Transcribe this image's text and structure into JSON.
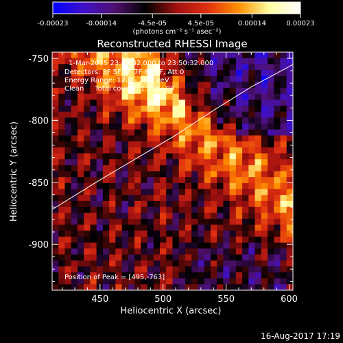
{
  "chart_data": {
    "type": "heatmap",
    "title": "Reconstructed RHESSI Image",
    "xlabel": "Heliocentric X (arcsec)",
    "ylabel": "Heliocentric Y (arcsec)",
    "xlim": [
      412,
      603
    ],
    "ylim": [
      -937,
      -745
    ],
    "x_ticks": [
      450,
      500,
      550,
      600
    ],
    "y_ticks": [
      -750,
      -800,
      -850,
      -900
    ],
    "colorbar": {
      "min": -0.00023,
      "max": 0.00023,
      "tick_values": [
        -0.00023,
        -0.00014,
        -4.5e-05,
        4.5e-05,
        0.00014,
        0.00023
      ],
      "tick_labels": [
        "-0.00023",
        "-0.00014",
        "-4.5e-05",
        "4.5e-05",
        "0.00014",
        "0.00023"
      ],
      "units": "(photons cm⁻² s⁻¹ asec⁻²)",
      "colors": [
        "#0000ff",
        "#4010c8",
        "#501070",
        "#000000",
        "#a01010",
        "#e03010",
        "#ff9000",
        "#ffffa0",
        "#ffffff"
      ]
    },
    "annotations": [
      "1-Mar-2015 23:49:32.000 to 23:50:32.000",
      "Detectors: 3F 5F 6F 7F 8F 9F, Att 0",
      "Energy Range: 12.0 - 25.0 keV",
      "Clean     Total counts: 1.11e+04",
      "Position of Peak = [495,-763]"
    ],
    "peak": {
      "x": 495,
      "y": -763
    },
    "limb_curve": [
      [
        412,
        -872
      ],
      [
        450,
        -848
      ],
      [
        480,
        -830
      ],
      [
        510,
        -812
      ],
      [
        540,
        -792
      ],
      [
        570,
        -773
      ],
      [
        603,
        -755
      ]
    ],
    "limb_color": "#ffffff"
  },
  "footer": {
    "date": "16-Aug-2017 17:19"
  }
}
